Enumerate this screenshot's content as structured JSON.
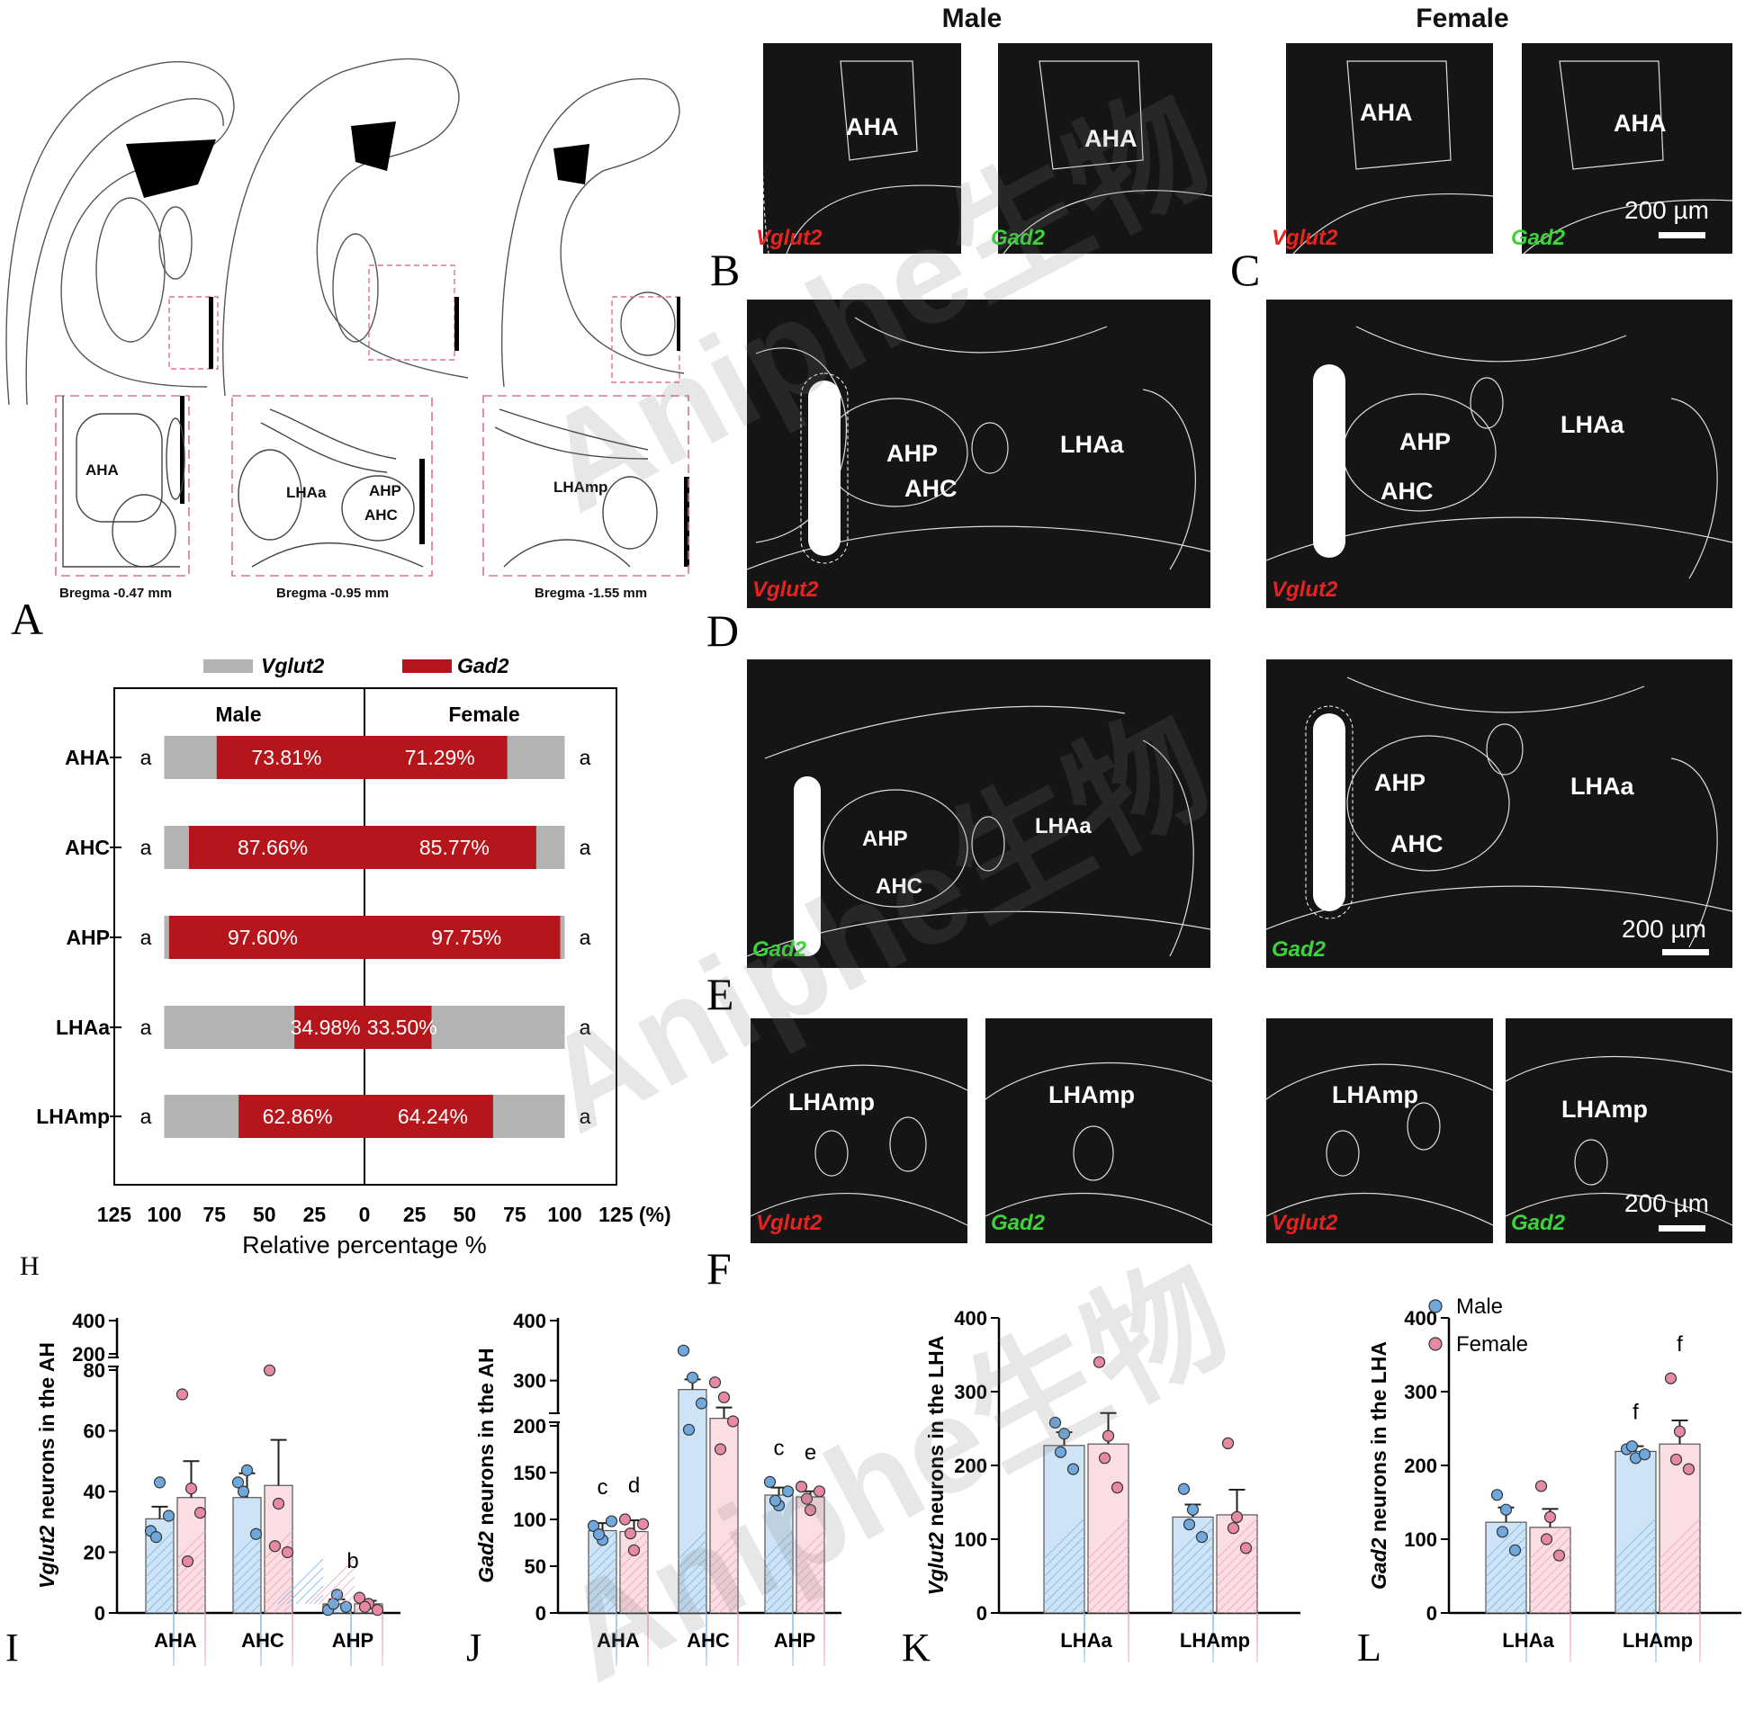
{
  "headers": {
    "male": "Male",
    "female": "Female"
  },
  "panel_letters": {
    "A": "A",
    "B": "B",
    "C": "C",
    "D": "D",
    "E": "E",
    "F": "F",
    "H": "H",
    "I": "I",
    "J": "J",
    "K": "K",
    "L": "L"
  },
  "atlas": {
    "labels": {
      "aha": "AHA",
      "lhaa": "LHAa",
      "ahp": "AHP",
      "ahc": "AHC",
      "lhamp": "LHAmp"
    },
    "bregma": [
      "Bregma -0.47 mm",
      "Bregma -0.95 mm",
      "Bregma -1.55 mm"
    ]
  },
  "micro": {
    "vglut2": "Vglut2",
    "gad2": "Gad2",
    "aha": "AHA",
    "ahp": "AHP",
    "ahc": "AHC",
    "lhaa": "LHAa",
    "lhamp": "LHAmp",
    "scale": "200 µm",
    "colors": {
      "red_signal": "#e8221e",
      "green_signal": "#3cd43a",
      "background": "#151515"
    }
  },
  "watermark": "Aniphe生物",
  "chart_data": [
    {
      "panel": "H",
      "type": "bar",
      "orientation": "horizontal-diverging",
      "legend": [
        "Vglut2",
        "Gad2"
      ],
      "colors": {
        "Vglut2": "#b3b3b3",
        "Gad2": "#b4161b"
      },
      "column_titles": [
        "Male",
        "Female"
      ],
      "categories": [
        "AHA",
        "AHC",
        "AHP",
        "LHAa",
        "LHAmp"
      ],
      "series": [
        {
          "name": "Male Gad2 %",
          "values": [
            73.81,
            87.66,
            97.6,
            34.98,
            62.86
          ],
          "labels": [
            "73.81%",
            "87.66%",
            "97.60%",
            "34.98%",
            "62.86%"
          ]
        },
        {
          "name": "Female Gad2 %",
          "values": [
            71.29,
            85.77,
            97.75,
            33.5,
            64.24
          ],
          "labels": [
            "71.29%",
            "85.77%",
            "97.75%",
            "33.50%",
            "64.24%"
          ]
        }
      ],
      "letters_left": [
        "a",
        "a",
        "a",
        "a",
        "a"
      ],
      "letters_right": [
        "a",
        "a",
        "a",
        "a",
        "a"
      ],
      "xticks": [
        "125",
        "100",
        "75",
        "50",
        "25",
        "0",
        "25",
        "50",
        "75",
        "100",
        "125 (%)"
      ],
      "xlabel": "Relative percentage %",
      "xlim": [
        -125,
        125
      ]
    },
    {
      "panel": "I",
      "type": "bar",
      "ylabel_gene": "Vglut2",
      "ylabel_rest": " neurons in the AH",
      "categories": [
        "AHA",
        "AHC",
        "AHP"
      ],
      "series": [
        {
          "name": "Male",
          "values": [
            31,
            38,
            3
          ],
          "sem": [
            4,
            8,
            1.5
          ],
          "points": [
            [
              27,
              43,
              32,
              25
            ],
            [
              43,
              47,
              26,
              40
            ],
            [
              1,
              6,
              2,
              3
            ]
          ]
        },
        {
          "name": "Female",
          "values": [
            38,
            42,
            3
          ],
          "sem": [
            12,
            15,
            1
          ],
          "points": [
            [
              72,
              41,
              33,
              17
            ],
            [
              101,
              36,
              20,
              22
            ],
            [
              5,
              3,
              1,
              2
            ]
          ]
        }
      ],
      "yticks": [
        "0",
        "20",
        "40",
        "60",
        "80",
        "200",
        "400"
      ],
      "axis_break": [
        80,
        200
      ],
      "annotations": [
        {
          "text": "b",
          "category": "AHP"
        }
      ]
    },
    {
      "panel": "J",
      "type": "bar",
      "ylabel_gene": "Gad2",
      "ylabel_rest": " neurons in the AH",
      "categories": [
        "AHA",
        "AHC",
        "AHP"
      ],
      "series": [
        {
          "name": "Male",
          "values": [
            88,
            285,
            126
          ],
          "sem": [
            8,
            17,
            8
          ],
          "points": [
            [
              93,
              78,
              98,
              84
            ],
            [
              350,
              305,
              262,
              218
            ],
            [
              140,
              115,
              130,
              120
            ]
          ]
        },
        {
          "name": "Female",
          "values": [
            87,
            237,
            124
          ],
          "sem": [
            12,
            18,
            6
          ],
          "points": [
            [
              100,
              67,
              95,
              85
            ],
            [
              297,
              272,
              232,
              175
            ],
            [
              135,
              110,
              130,
              122
            ]
          ]
        }
      ],
      "yticks": [
        "0",
        "50",
        "100",
        "150",
        "200",
        "300",
        "400"
      ],
      "axis_break": [
        200,
        250
      ],
      "annotations": [
        {
          "text": "c",
          "category": "AHA",
          "series": "Male"
        },
        {
          "text": "d",
          "category": "AHA",
          "series": "Female"
        },
        {
          "text": "c",
          "category": "AHP",
          "series": "Male"
        },
        {
          "text": "e",
          "category": "AHP",
          "series": "Female"
        }
      ]
    },
    {
      "panel": "K",
      "type": "bar",
      "ylabel_gene": "Vglut2",
      "ylabel_rest": " neurons in the LHA",
      "categories": [
        "LHAa",
        "LHAmp"
      ],
      "series": [
        {
          "name": "Male",
          "values": [
            227,
            130
          ],
          "sem": [
            18,
            17
          ],
          "points": [
            [
              258,
              243,
              195,
              218
            ],
            [
              168,
              140,
              103,
              120
            ]
          ]
        },
        {
          "name": "Female",
          "values": [
            229,
            133
          ],
          "sem": [
            42,
            34
          ],
          "points": [
            [
              340,
              240,
              170,
              210
            ],
            [
              230,
              130,
              88,
              115
            ]
          ]
        }
      ],
      "yticks": [
        "0",
        "100",
        "200",
        "300",
        "400"
      ],
      "ylim": [
        0,
        400
      ]
    },
    {
      "panel": "L",
      "type": "bar",
      "ylabel_gene": "Gad2",
      "ylabel_rest": " neurons in the LHA",
      "legend": [
        "Male",
        "Female"
      ],
      "categories": [
        "LHAa",
        "LHAmp"
      ],
      "series": [
        {
          "name": "Male",
          "values": [
            123,
            219
          ],
          "sem": [
            20,
            7
          ],
          "points": [
            [
              160,
              140,
              85,
              110
            ],
            [
              222,
              210,
              215,
              226
            ]
          ]
        },
        {
          "name": "Female",
          "values": [
            116,
            229
          ],
          "sem": [
            25,
            32
          ],
          "points": [
            [
              172,
              130,
              78,
              100
            ],
            [
              318,
              246,
              195,
              208
            ]
          ]
        }
      ],
      "yticks": [
        "0",
        "100",
        "200",
        "300",
        "400"
      ],
      "ylim": [
        0,
        400
      ],
      "annotations": [
        {
          "text": "f",
          "category": "LHAmp",
          "series": "Male"
        },
        {
          "text": "f",
          "category": "LHAmp",
          "series": "Female"
        }
      ]
    }
  ]
}
